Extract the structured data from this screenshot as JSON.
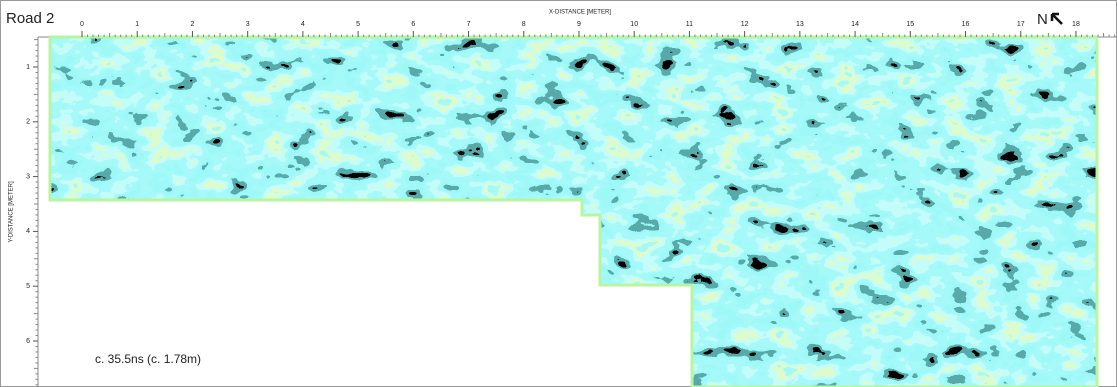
{
  "header": {
    "title": "Road 2"
  },
  "x_axis": {
    "label": "X-DISTANCE [METER]",
    "ticks": [
      0,
      1,
      2,
      3,
      4,
      5,
      6,
      7,
      8,
      9,
      10,
      11,
      12,
      13,
      14,
      15,
      16,
      17,
      18
    ]
  },
  "y_axis": {
    "label": "Y-DISTANCE [METER]",
    "ticks": [
      1,
      2,
      3,
      4,
      5,
      6
    ]
  },
  "north_label": "N",
  "annotation": "c. 35.5ns (c. 1.78m)"
}
